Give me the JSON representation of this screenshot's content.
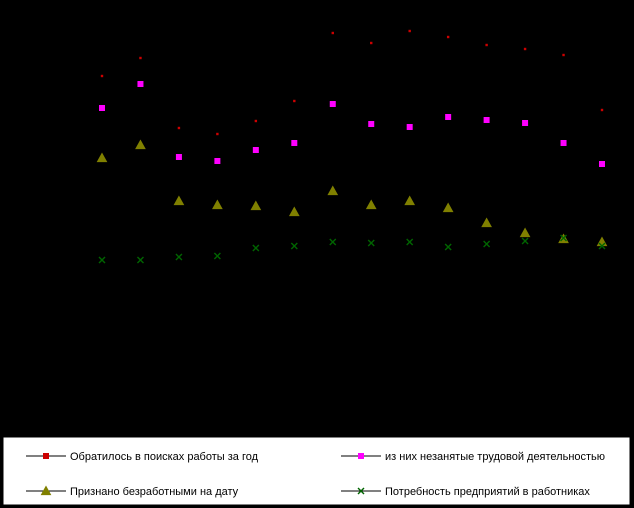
{
  "chart_data": {
    "type": "line",
    "title": "",
    "xlabel": "",
    "ylabel": "",
    "x": [
      1,
      2,
      3,
      4,
      5,
      6,
      7,
      8,
      9,
      10,
      11,
      12,
      13,
      14
    ],
    "legend_position": "bottom",
    "grid": false,
    "series": [
      {
        "name": "Обратилось в поисках работы за год",
        "color": "#cc0000",
        "marker": "square",
        "values": [
          430,
          448,
          378,
          372,
          385,
          405,
          473,
          463,
          475,
          469,
          461,
          457,
          451,
          396
        ]
      },
      {
        "name": "из них незанятые трудовой деятельностью",
        "color": "#ff00ff",
        "marker": "square",
        "values": [
          398,
          422,
          349,
          345,
          356,
          363,
          402,
          382,
          379,
          389,
          386,
          383,
          363,
          342
        ]
      },
      {
        "name": "Признано  безработными  на дату",
        "color": "#808000",
        "marker": "triangle",
        "values": [
          348,
          361,
          305,
          301,
          300,
          294,
          315,
          301,
          305,
          298,
          283,
          273,
          267,
          264
        ]
      },
      {
        "name": "Потребность  предприятий  в работниках",
        "color": "#006400",
        "marker": "x",
        "values": [
          246,
          246,
          249,
          250,
          258,
          260,
          264,
          263,
          264,
          259,
          262,
          265,
          268,
          260
        ]
      }
    ]
  }
}
